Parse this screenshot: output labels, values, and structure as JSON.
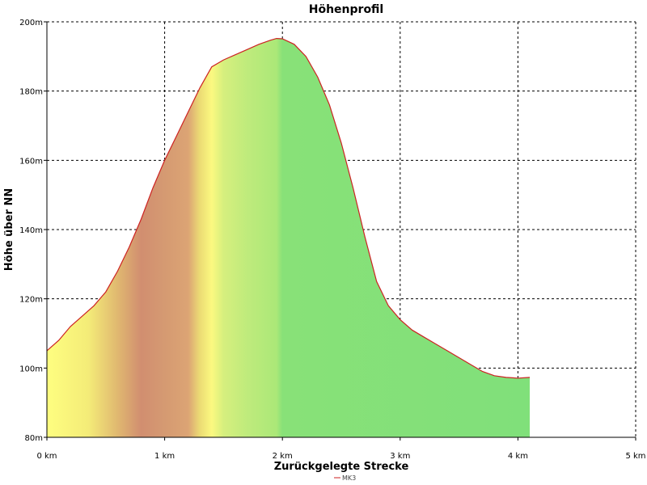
{
  "chart_data": {
    "type": "area",
    "title": "Höhenprofil",
    "xlabel": "Zurückgelegte Strecke",
    "ylabel": "Höhe über NN",
    "xlim": [
      0,
      5
    ],
    "ylim": [
      80,
      200
    ],
    "x_ticks": [
      0,
      1,
      2,
      3,
      4,
      5
    ],
    "x_tick_labels": [
      "0 km",
      "1 km",
      "2 km",
      "3 km",
      "4 km",
      "5 km"
    ],
    "y_ticks": [
      80,
      100,
      120,
      140,
      160,
      180,
      200
    ],
    "y_tick_labels": [
      "80m",
      "100m",
      "120m",
      "140m",
      "160m",
      "180m",
      "200m"
    ],
    "grid": true,
    "legend_position": "bottom-center",
    "series": [
      {
        "name": "MK3",
        "color": "#cc2222",
        "x": [
          0,
          0.1,
          0.2,
          0.3,
          0.4,
          0.5,
          0.6,
          0.7,
          0.8,
          0.9,
          1.0,
          1.1,
          1.2,
          1.3,
          1.4,
          1.5,
          1.6,
          1.7,
          1.8,
          1.9,
          1.95,
          2.0,
          2.1,
          2.2,
          2.3,
          2.4,
          2.5,
          2.6,
          2.7,
          2.8,
          2.9,
          3.0,
          3.1,
          3.2,
          3.3,
          3.4,
          3.5,
          3.6,
          3.7,
          3.8,
          3.9,
          4.0,
          4.1
        ],
        "values": [
          105,
          108,
          112,
          115,
          118,
          122,
          128,
          135,
          143,
          152,
          160,
          167,
          174,
          181,
          187,
          189,
          190.5,
          192,
          193.5,
          194.7,
          195.2,
          195.1,
          193.5,
          190,
          184,
          176,
          165,
          152,
          138,
          125,
          118,
          114,
          111,
          109,
          107,
          105,
          103,
          101,
          99,
          97.8,
          97.3,
          97.1,
          97.3
        ]
      }
    ],
    "fill_gradient": [
      {
        "x": 0.0,
        "color": "#fefe80"
      },
      {
        "x": 0.35,
        "color": "#f4ec78"
      },
      {
        "x": 0.6,
        "color": "#e0b870"
      },
      {
        "x": 0.8,
        "color": "#d18e70"
      },
      {
        "x": 1.0,
        "color": "#d59a72"
      },
      {
        "x": 1.2,
        "color": "#dca474"
      },
      {
        "x": 1.3,
        "color": "#ecdc74"
      },
      {
        "x": 1.4,
        "color": "#fbf980"
      },
      {
        "x": 1.5,
        "color": "#d6ef7e"
      },
      {
        "x": 1.7,
        "color": "#bfeb7c"
      },
      {
        "x": 1.95,
        "color": "#abe878"
      },
      {
        "x": 2.0,
        "color": "#88e178"
      },
      {
        "x": 4.1,
        "color": "#80e07a"
      }
    ]
  }
}
